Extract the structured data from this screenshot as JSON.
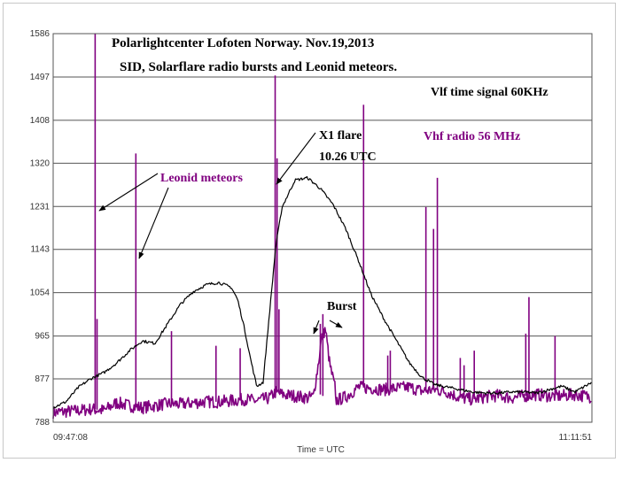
{
  "chart_data": {
    "type": "line",
    "title_lines": [
      "Polarlightcenter Lofoten Norway.  Nov.19,2013",
      "SID, Solarflare radio bursts and Leonid meteors."
    ],
    "xlabel": "Time = UTC",
    "ylabel": "",
    "x_tick_labels": [
      "09:47:08",
      "11:11:51"
    ],
    "x_range": [
      "09:47:08",
      "11:11:51"
    ],
    "y_ticks": [
      788,
      877,
      965,
      1054,
      1143,
      1231,
      1320,
      1408,
      1497,
      1586
    ],
    "ylim": [
      788,
      1586
    ],
    "grid": "horizontal",
    "legend": [
      {
        "name": "Vlf time signal 60KHz",
        "color": "#000000",
        "position": "top-right"
      },
      {
        "name": "Vhf radio 56 MHz",
        "color": "#800080",
        "position": "top-right"
      }
    ],
    "annotations": [
      {
        "text": "Leonid meteors",
        "color": "#800080"
      },
      {
        "text": "X1 flare",
        "color": "#000000"
      },
      {
        "text": "10.26 UTC",
        "color": "#000000"
      },
      {
        "text": "Burst",
        "color": "#000000"
      }
    ],
    "series": [
      {
        "name": "Vlf time signal 60KHz",
        "color": "#000000",
        "x_minutes": [
          0,
          2,
          4,
          6,
          8,
          10,
          12,
          14,
          16,
          18,
          20,
          22,
          24,
          26,
          28,
          29,
          30,
          31,
          32,
          33,
          34,
          35,
          36,
          38,
          40,
          42,
          44,
          46,
          48,
          50,
          52,
          54,
          56,
          58,
          60,
          62,
          64,
          66,
          68,
          70,
          72,
          74,
          76,
          78,
          80,
          82,
          84.7
        ],
        "values": [
          818,
          830,
          860,
          878,
          890,
          910,
          935,
          955,
          950,
          990,
          1030,
          1056,
          1070,
          1075,
          1065,
          1040,
          985,
          920,
          862,
          870,
          1010,
          1150,
          1230,
          1285,
          1290,
          1268,
          1235,
          1185,
          1120,
          1050,
          1000,
          955,
          910,
          880,
          865,
          860,
          855,
          850,
          848,
          848,
          850,
          850,
          848,
          855,
          862,
          850,
          870
        ]
      },
      {
        "name": "Vhf radio 56 MHz",
        "color": "#800080",
        "x_minutes": [
          0,
          4,
          6,
          8,
          10,
          12,
          14,
          16,
          18,
          20,
          22,
          24,
          26,
          28,
          30,
          32,
          34,
          35,
          36,
          38,
          40,
          42,
          44,
          46,
          48,
          50,
          52,
          54,
          56,
          58,
          60,
          62,
          64,
          66,
          68,
          70,
          72,
          74,
          76,
          78,
          80,
          82,
          84.7
        ],
        "values": [
          808,
          812,
          815,
          812,
          828,
          822,
          818,
          822,
          826,
          825,
          828,
          830,
          830,
          832,
          835,
          832,
          838,
          850,
          845,
          842,
          838,
          845,
          830,
          840,
          860,
          858,
          855,
          858,
          860,
          852,
          855,
          850,
          838,
          835,
          840,
          843,
          838,
          842,
          845,
          842,
          842,
          845,
          840
        ]
      }
    ],
    "spikes": [
      {
        "series": "Vhf radio 56 MHz",
        "x_minutes": 6.6,
        "value": 1586
      },
      {
        "series": "Vhf radio 56 MHz",
        "x_minutes": 6.9,
        "value": 1000
      },
      {
        "series": "Vhf radio 56 MHz",
        "x_minutes": 13.0,
        "value": 1340
      },
      {
        "series": "Vhf radio 56 MHz",
        "x_minutes": 18.6,
        "value": 975
      },
      {
        "series": "Vhf radio 56 MHz",
        "x_minutes": 25.6,
        "value": 945
      },
      {
        "series": "Vhf radio 56 MHz",
        "x_minutes": 29.4,
        "value": 940
      },
      {
        "series": "Vhf radio 56 MHz",
        "x_minutes": 34.9,
        "value": 1500
      },
      {
        "series": "Vhf radio 56 MHz",
        "x_minutes": 35.2,
        "value": 1330
      },
      {
        "series": "Vhf radio 56 MHz",
        "x_minutes": 35.5,
        "value": 1020
      },
      {
        "series": "Vhf radio 56 MHz",
        "x_minutes": 42.0,
        "value": 990
      },
      {
        "series": "Vhf radio 56 MHz",
        "x_minutes": 42.4,
        "value": 1010
      },
      {
        "series": "Vhf radio 56 MHz",
        "x_minutes": 48.8,
        "value": 1440
      },
      {
        "series": "Vhf radio 56 MHz",
        "x_minutes": 52.6,
        "value": 925
      },
      {
        "series": "Vhf radio 56 MHz",
        "x_minutes": 53.0,
        "value": 935
      },
      {
        "series": "Vhf radio 56 MHz",
        "x_minutes": 58.6,
        "value": 1230
      },
      {
        "series": "Vhf radio 56 MHz",
        "x_minutes": 59.8,
        "value": 1185
      },
      {
        "series": "Vhf radio 56 MHz",
        "x_minutes": 60.4,
        "value": 1290
      },
      {
        "series": "Vhf radio 56 MHz",
        "x_minutes": 64.0,
        "value": 920
      },
      {
        "series": "Vhf radio 56 MHz",
        "x_minutes": 64.6,
        "value": 905
      },
      {
        "series": "Vhf radio 56 MHz",
        "x_minutes": 66.2,
        "value": 935
      },
      {
        "series": "Vhf radio 56 MHz",
        "x_minutes": 74.3,
        "value": 970
      },
      {
        "series": "Vhf radio 56 MHz",
        "x_minutes": 74.8,
        "value": 1045
      },
      {
        "series": "Vhf radio 56 MHz",
        "x_minutes": 78.9,
        "value": 965
      }
    ],
    "burst_bump": {
      "series": "Vhf radio 56 MHz",
      "x_minutes": [
        41,
        41.6,
        42.2,
        42.8,
        43.5,
        44.3
      ],
      "values": [
        850,
        900,
        960,
        980,
        905,
        860
      ]
    }
  }
}
